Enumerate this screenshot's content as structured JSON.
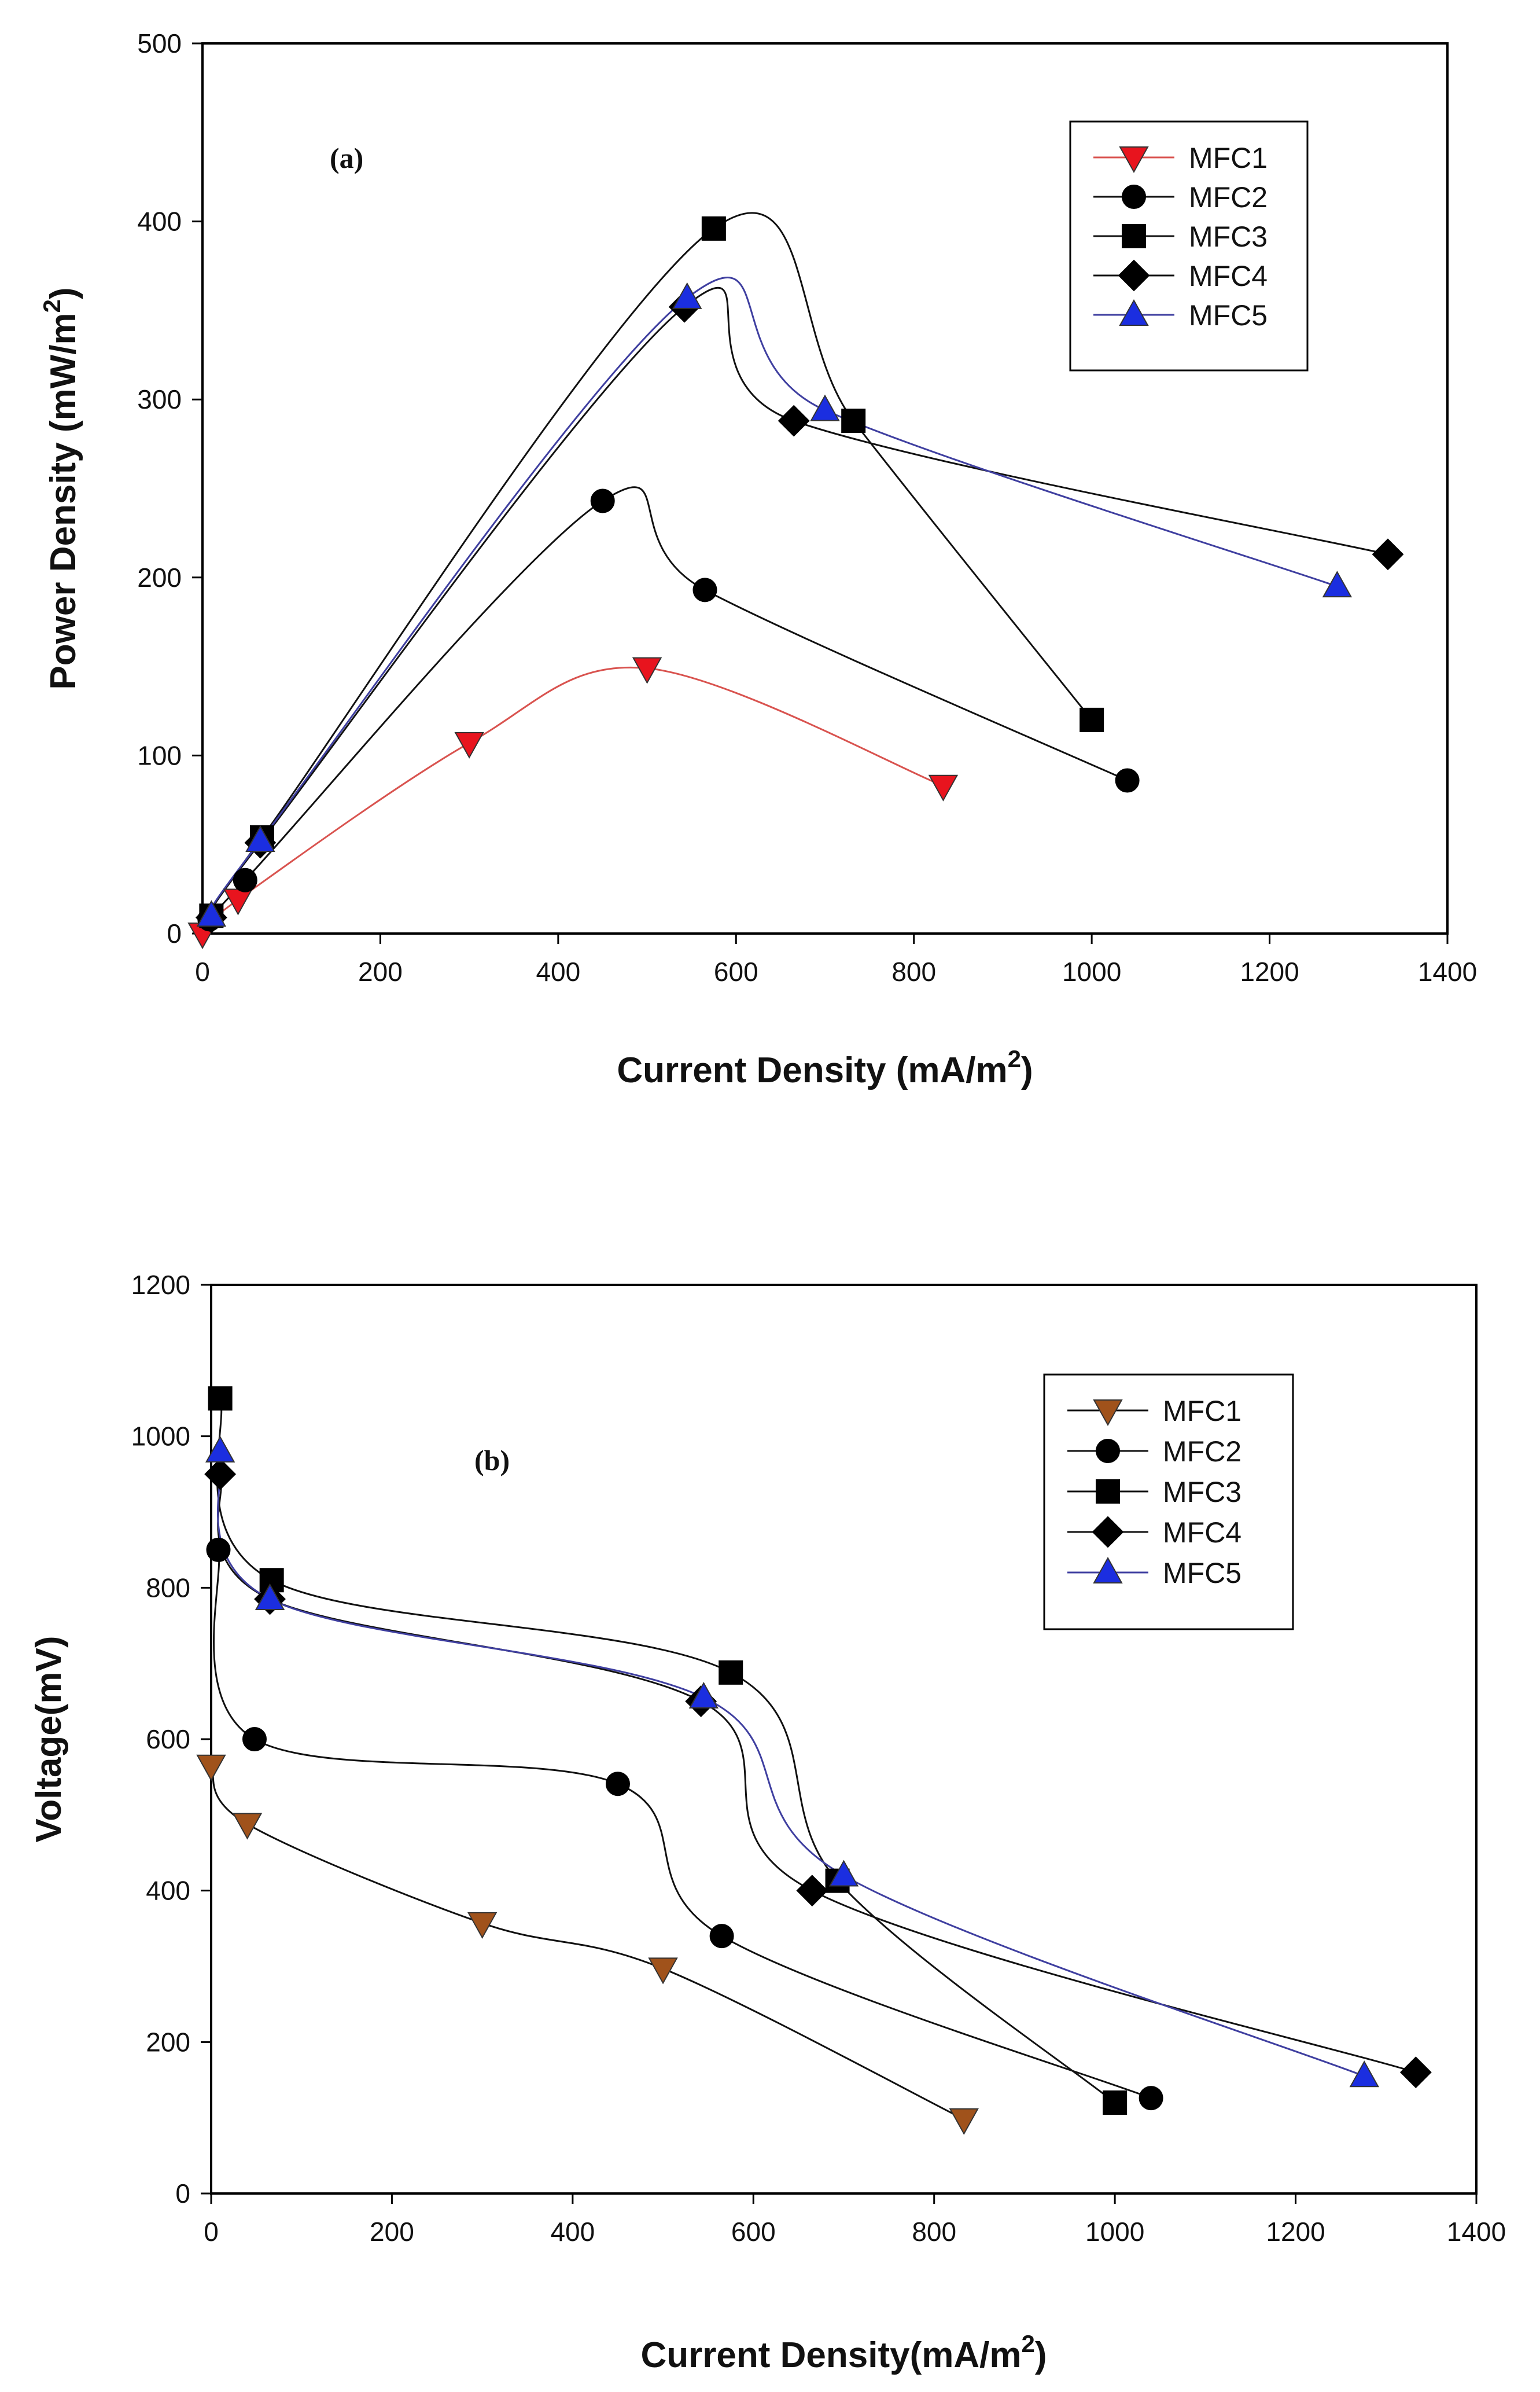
{
  "chart_data": [
    {
      "type": "line",
      "panel": "(a)",
      "xlabel": "Current Density (mA/m²)",
      "xlabel_main": "Current Density (mA/m",
      "xlabel_sup": "2",
      "xlabel_tail": ")",
      "ylabel_main": "Power Density (mW/m",
      "ylabel_sup": "2",
      "ylabel_tail": ")",
      "xlim": [
        0,
        1400
      ],
      "ylim": [
        0,
        500
      ],
      "xticks": [
        0,
        200,
        400,
        600,
        800,
        1000,
        1200,
        1400
      ],
      "yticks": [
        0,
        100,
        200,
        300,
        400,
        500
      ],
      "grid": false,
      "legend": "top-right",
      "series": [
        {
          "name": "MFC1",
          "marker": "triangle-down",
          "line_color": "#d9534f",
          "marker_color": "#e8141e",
          "x": [
            0,
            40,
            300,
            500,
            833
          ],
          "y": [
            0,
            19,
            107,
            149,
            83
          ]
        },
        {
          "name": "MFC2",
          "marker": "circle",
          "line_color": "#111111",
          "marker_color": "#000000",
          "x": [
            8,
            48,
            450,
            565,
            1040
          ],
          "y": [
            8,
            30,
            243,
            193,
            86
          ]
        },
        {
          "name": "MFC3",
          "marker": "square",
          "line_color": "#111111",
          "marker_color": "#000000",
          "x": [
            10,
            67,
            575,
            732,
            1000
          ],
          "y": [
            10,
            54,
            396,
            288,
            120
          ]
        },
        {
          "name": "MFC4",
          "marker": "diamond",
          "line_color": "#111111",
          "marker_color": "#000000",
          "x": [
            10,
            65,
            542,
            665,
            1333
          ],
          "y": [
            9,
            51,
            352,
            288,
            213
          ]
        },
        {
          "name": "MFC5",
          "marker": "triangle-up",
          "line_color": "#3f3fa0",
          "marker_color": "#1b2ee0",
          "x": [
            10,
            65,
            545,
            700,
            1276
          ],
          "y": [
            10,
            52,
            357,
            294,
            195
          ]
        }
      ]
    },
    {
      "type": "line",
      "panel": "(b)",
      "xlabel": "Current Density(mA/m²)",
      "xlabel_main": "Current Density(mA/m",
      "xlabel_sup": "2",
      "xlabel_tail": ")",
      "ylabel": "Voltage(mV)",
      "xlim": [
        0,
        1400
      ],
      "ylim": [
        0,
        1200
      ],
      "xticks": [
        0,
        200,
        400,
        600,
        800,
        1000,
        1200,
        1400
      ],
      "yticks": [
        0,
        200,
        400,
        600,
        800,
        1000,
        1200
      ],
      "grid": false,
      "legend": "top-right",
      "series": [
        {
          "name": "MFC1",
          "marker": "triangle-down",
          "line_color": "#111111",
          "marker_color": "#a0521b",
          "x": [
            0,
            40,
            300,
            500,
            833
          ],
          "y": [
            565,
            488,
            357,
            297,
            98
          ]
        },
        {
          "name": "MFC2",
          "marker": "circle",
          "line_color": "#111111",
          "marker_color": "#000000",
          "x": [
            8,
            48,
            450,
            565,
            1040
          ],
          "y": [
            850,
            600,
            541,
            340,
            126
          ]
        },
        {
          "name": "MFC3",
          "marker": "square",
          "line_color": "#111111",
          "marker_color": "#000000",
          "x": [
            10,
            67,
            575,
            693,
            1000
          ],
          "y": [
            1050,
            810,
            688,
            413,
            120
          ]
        },
        {
          "name": "MFC4",
          "marker": "diamond",
          "line_color": "#111111",
          "marker_color": "#000000",
          "x": [
            10,
            65,
            542,
            665,
            1333
          ],
          "y": [
            950,
            785,
            650,
            400,
            160
          ]
        },
        {
          "name": "MFC5",
          "marker": "triangle-up",
          "line_color": "#3f3fa0",
          "marker_color": "#1b2ee0",
          "x": [
            10,
            65,
            545,
            700,
            1276
          ],
          "y": [
            980,
            785,
            655,
            420,
            155
          ]
        }
      ]
    }
  ]
}
